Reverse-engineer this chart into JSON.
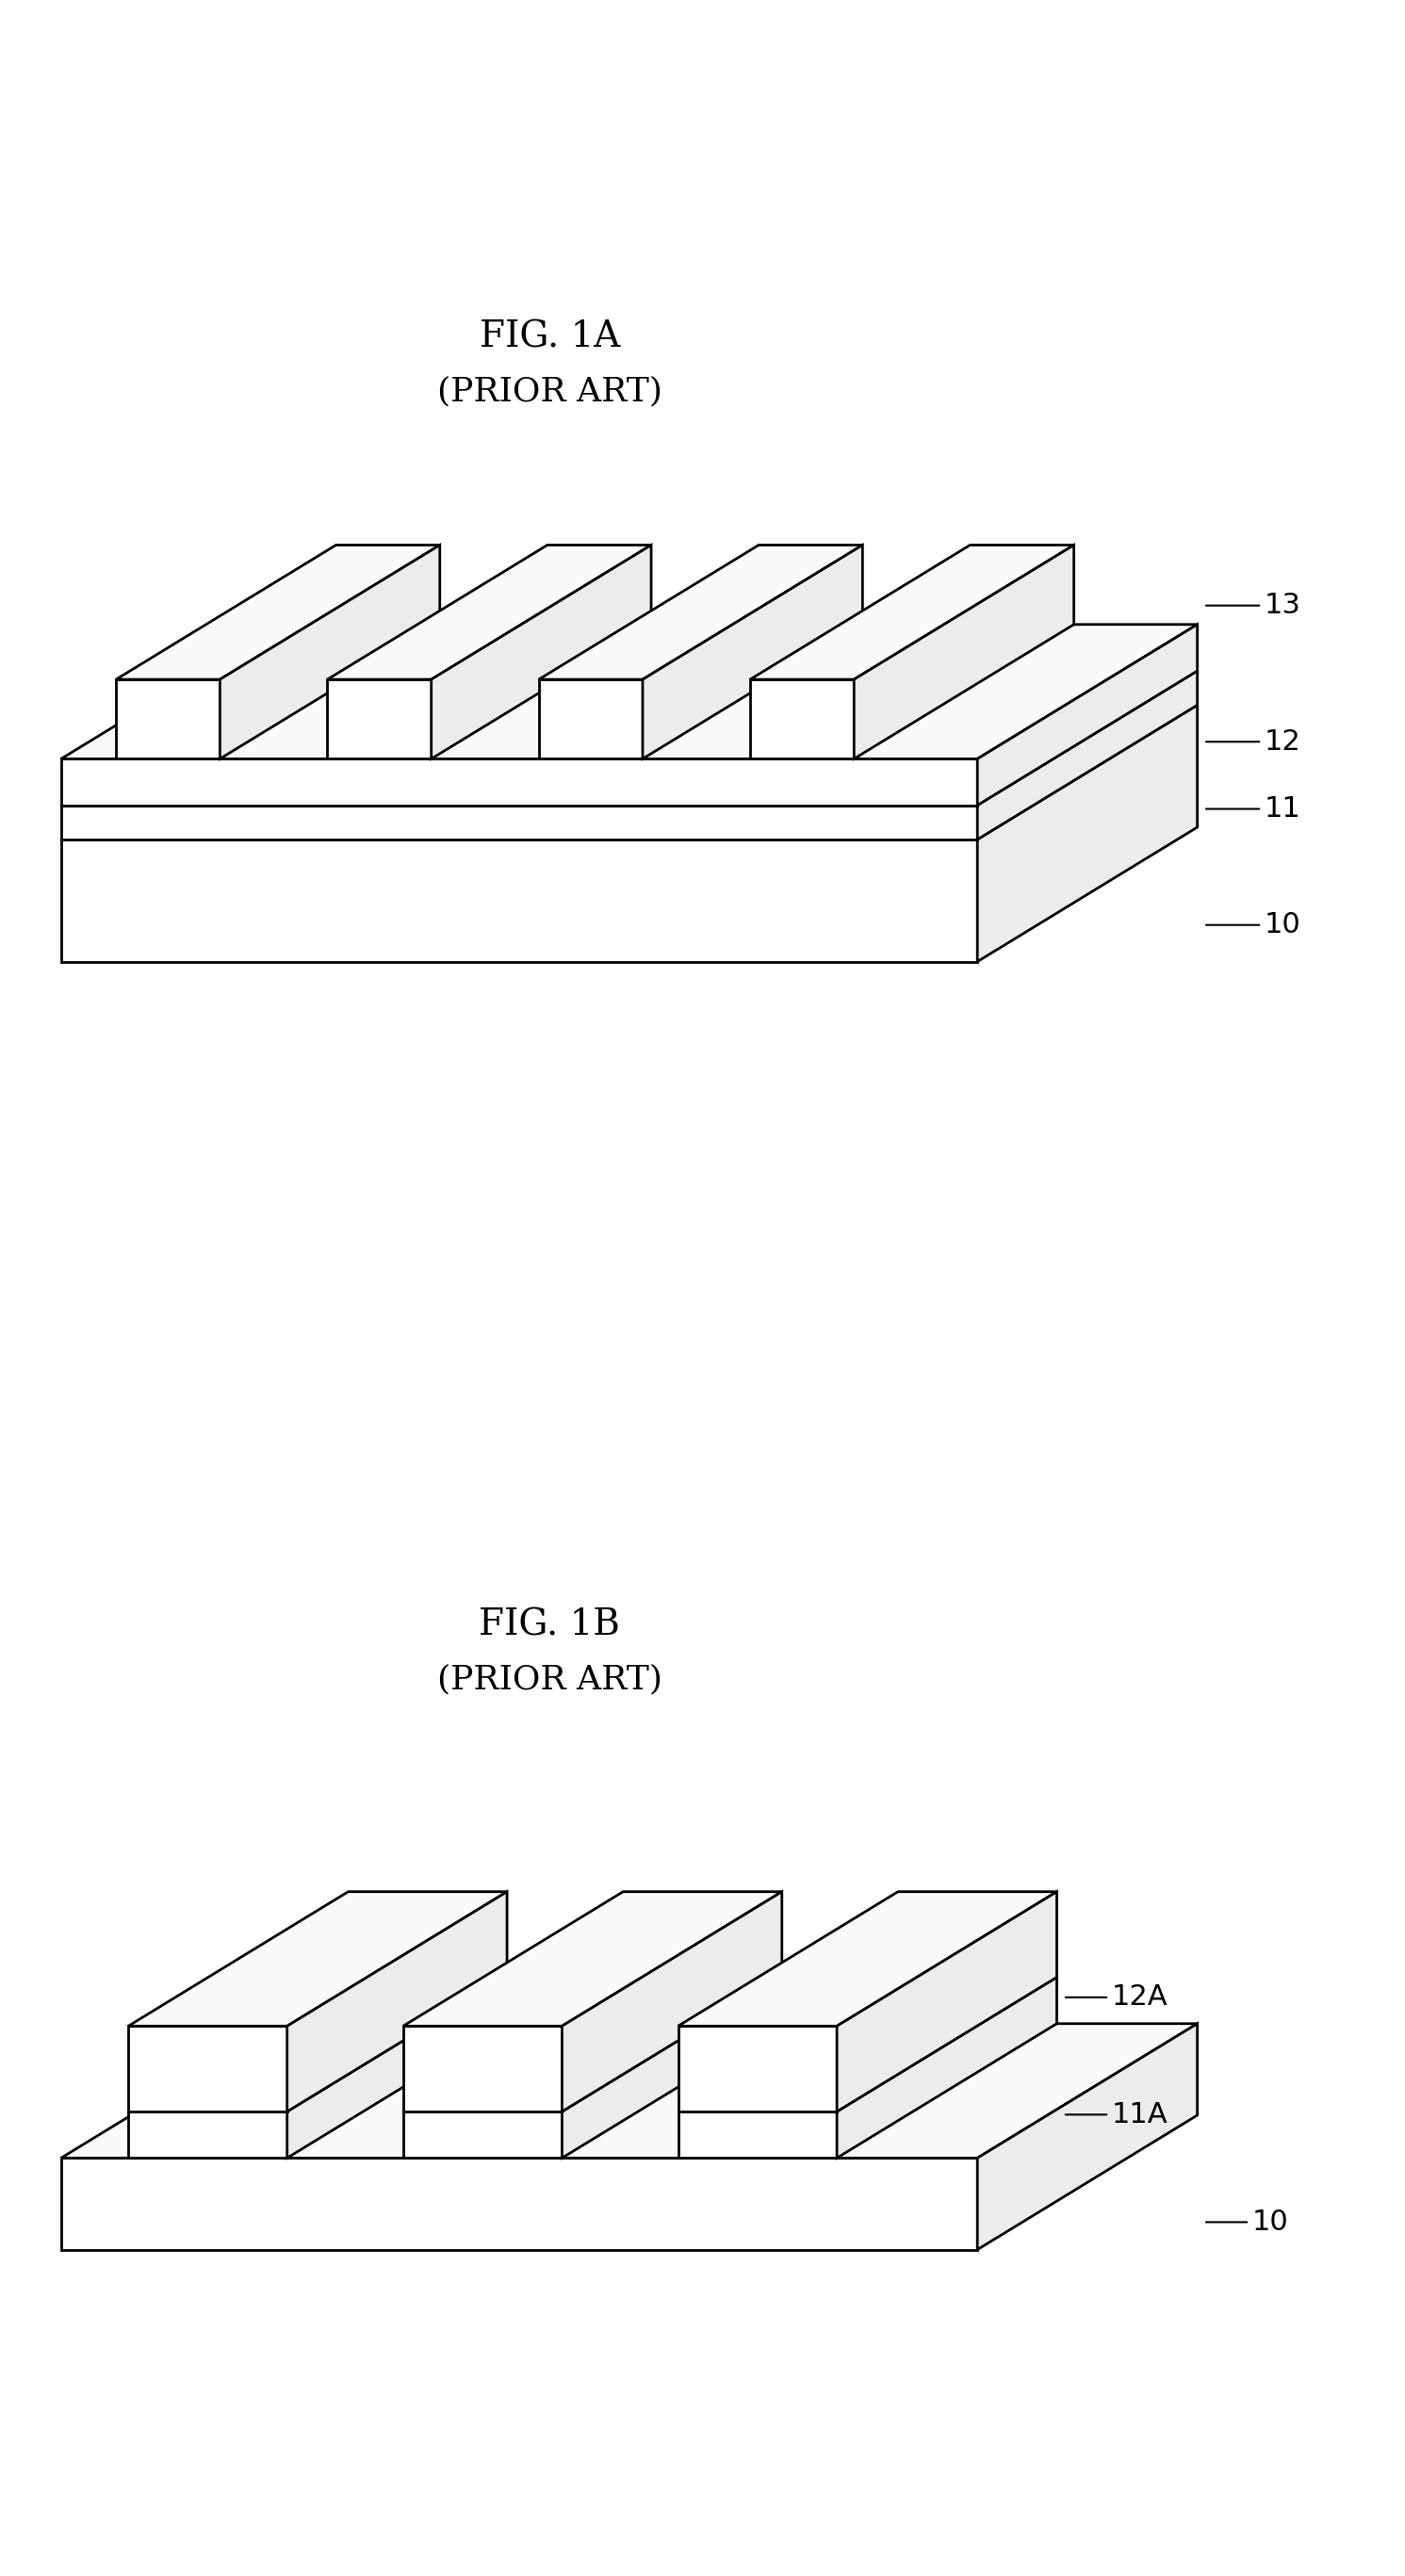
{
  "fig1a_title": "FIG. 1A",
  "fig1a_subtitle": "(PRIOR ART)",
  "fig1b_title": "FIG. 1B",
  "fig1b_subtitle": "(PRIOR ART)",
  "bg_color": "#ffffff",
  "edge_color": "#000000",
  "white": "#ffffff",
  "near_white": "#fafafa",
  "light_gray": "#ececec",
  "line_width": 2.0,
  "title_fontsize": 28,
  "subtitle_fontsize": 26,
  "label_fontsize": 22
}
